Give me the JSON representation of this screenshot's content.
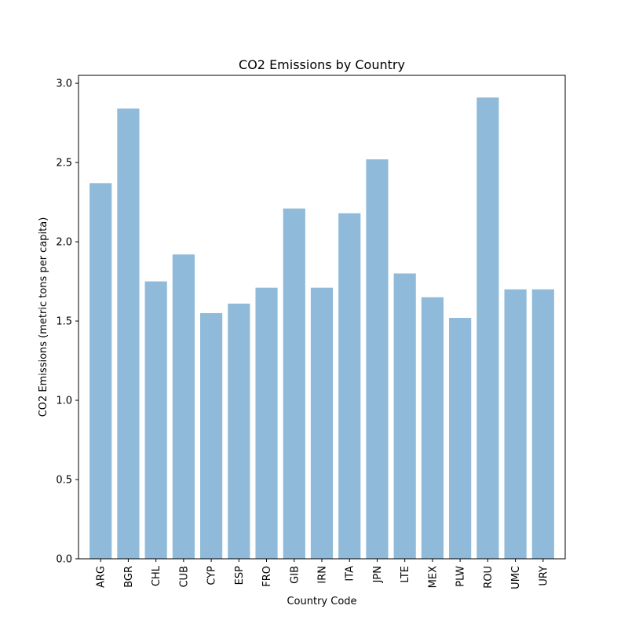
{
  "chart_data": {
    "type": "bar",
    "title": "CO2 Emissions by Country",
    "xlabel": "Country Code",
    "ylabel": "CO2 Emissions (metric tons per capita)",
    "categories": [
      "ARG",
      "BGR",
      "CHL",
      "CUB",
      "CYP",
      "ESP",
      "FRO",
      "GIB",
      "IRN",
      "ITA",
      "JPN",
      "LTE",
      "MEX",
      "PLW",
      "ROU",
      "UMC",
      "URY"
    ],
    "values": [
      2.37,
      2.84,
      1.75,
      1.92,
      1.55,
      1.61,
      1.71,
      2.21,
      1.71,
      2.18,
      2.52,
      1.8,
      1.65,
      1.52,
      2.91,
      1.7,
      1.7
    ],
    "ylim": [
      0,
      3.05
    ],
    "yticks": [
      0.0,
      0.5,
      1.0,
      1.5,
      2.0,
      2.5,
      3.0
    ],
    "ytick_labels": [
      "0.0",
      "0.5",
      "1.0",
      "1.5",
      "2.0",
      "2.5",
      "3.0"
    ],
    "bar_color": "#8fbad9",
    "grid": false
  }
}
